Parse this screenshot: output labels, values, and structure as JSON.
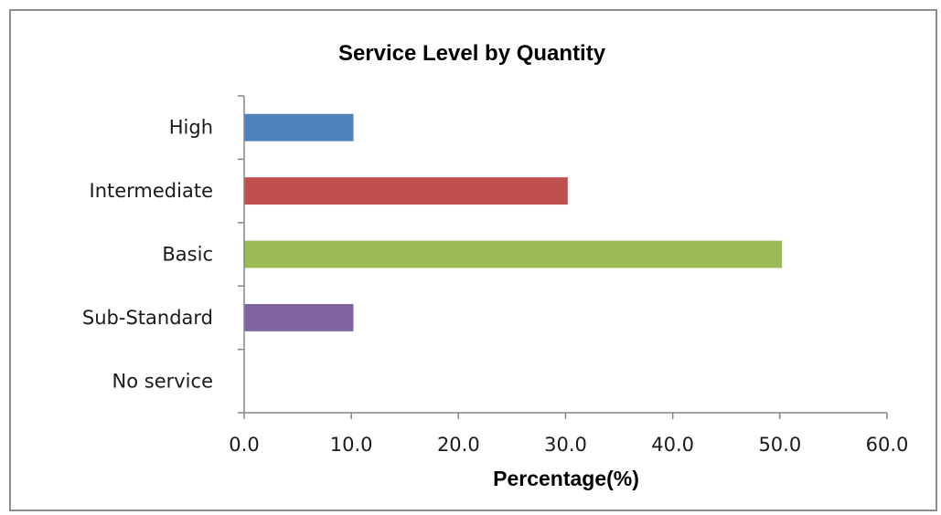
{
  "chart_data": {
    "type": "bar",
    "orientation": "horizontal",
    "title": "Service Level by Quantity",
    "xlabel": "Percentage(%)",
    "ylabel": "",
    "categories": [
      "High",
      "Intermediate",
      "Basic",
      "Sub-Standard",
      "No service"
    ],
    "values": [
      10.2,
      30.2,
      50.2,
      10.2,
      0
    ],
    "colors": [
      "#4f81bd",
      "#c0504d",
      "#9bbb59",
      "#8064a2",
      "#4bacc6"
    ],
    "xlim": [
      0,
      60
    ],
    "ticks": [
      "0.0",
      "10.0",
      "20.0",
      "30.0",
      "40.0",
      "50.0",
      "60.0"
    ],
    "grid": false,
    "legend": "none"
  }
}
